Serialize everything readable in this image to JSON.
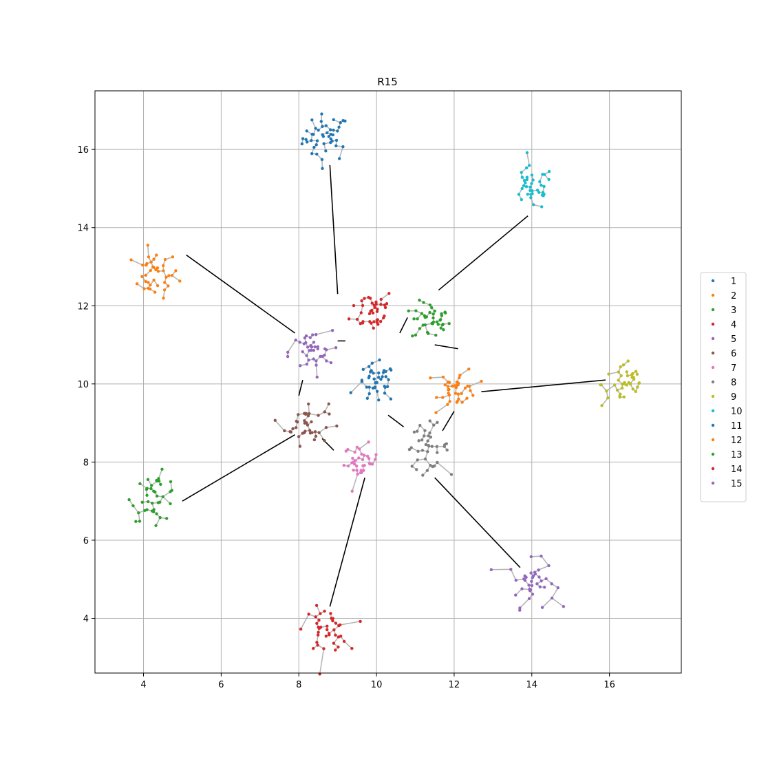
{
  "chart_data": {
    "type": "scatter",
    "title": "R15",
    "xlabel": "",
    "ylabel": "",
    "xlim": [
      2.75,
      17.85
    ],
    "ylim": [
      2.6,
      17.5
    ],
    "xticks": [
      4,
      6,
      8,
      10,
      12,
      14,
      16
    ],
    "yticks": [
      4,
      6,
      8,
      10,
      12,
      14,
      16
    ],
    "grid": true,
    "legend_position": "right",
    "mst_edge_color": "#aaaaaa",
    "bridge_edge_color": "#000000",
    "series": [
      {
        "name": "1",
        "color": "#1f77b4",
        "center": [
          8.7,
          16.3
        ],
        "spread": 0.3,
        "points": 45
      },
      {
        "name": "2",
        "color": "#ff7f0e",
        "center": [
          4.3,
          12.8
        ],
        "spread": 0.3,
        "points": 40
      },
      {
        "name": "3",
        "color": "#2ca02c",
        "center": [
          11.4,
          11.6
        ],
        "spread": 0.25,
        "points": 40
      },
      {
        "name": "4",
        "color": "#d62728",
        "center": [
          9.9,
          11.9
        ],
        "spread": 0.28,
        "points": 40
      },
      {
        "name": "5",
        "color": "#9467bd",
        "center": [
          14.0,
          4.9
        ],
        "spread": 0.3,
        "points": 40
      },
      {
        "name": "6",
        "color": "#8c564b",
        "center": [
          8.2,
          9.0
        ],
        "spread": 0.28,
        "points": 40
      },
      {
        "name": "7",
        "color": "#e377c2",
        "center": [
          9.6,
          8.0
        ],
        "spread": 0.22,
        "points": 35
      },
      {
        "name": "8",
        "color": "#7f7f7f",
        "center": [
          11.3,
          8.4
        ],
        "spread": 0.28,
        "points": 40
      },
      {
        "name": "9",
        "color": "#bcbd22",
        "center": [
          16.4,
          10.0
        ],
        "spread": 0.3,
        "points": 40
      },
      {
        "name": "10",
        "color": "#17becf",
        "center": [
          14.0,
          15.0
        ],
        "spread": 0.28,
        "points": 40
      },
      {
        "name": "11",
        "color": "#1f77b4",
        "center": [
          10.0,
          10.0
        ],
        "spread": 0.25,
        "points": 40
      },
      {
        "name": "12",
        "color": "#ff7f0e",
        "center": [
          12.1,
          9.9
        ],
        "spread": 0.25,
        "points": 40
      },
      {
        "name": "13",
        "color": "#2ca02c",
        "center": [
          4.3,
          7.1
        ],
        "spread": 0.3,
        "points": 40
      },
      {
        "name": "14",
        "color": "#d62728",
        "center": [
          8.7,
          3.7
        ],
        "spread": 0.28,
        "points": 40
      },
      {
        "name": "15",
        "color": "#9467bd",
        "center": [
          8.3,
          10.8
        ],
        "spread": 0.28,
        "points": 40
      }
    ],
    "bridges": [
      {
        "from": [
          8.8,
          15.6
        ],
        "to": [
          9.0,
          12.3
        ]
      },
      {
        "from": [
          5.1,
          13.3
        ],
        "to": [
          7.9,
          11.3
        ]
      },
      {
        "from": [
          11.6,
          12.4
        ],
        "to": [
          13.9,
          14.3
        ]
      },
      {
        "from": [
          10.6,
          11.3
        ],
        "to": [
          10.8,
          11.7
        ]
      },
      {
        "from": [
          9.0,
          11.1
        ],
        "to": [
          9.2,
          11.1
        ]
      },
      {
        "from": [
          11.5,
          11.0
        ],
        "to": [
          12.1,
          10.9
        ]
      },
      {
        "from": [
          12.7,
          9.8
        ],
        "to": [
          15.9,
          10.1
        ]
      },
      {
        "from": [
          10.3,
          9.2
        ],
        "to": [
          10.7,
          8.9
        ]
      },
      {
        "from": [
          11.7,
          8.8
        ],
        "to": [
          12.0,
          9.3
        ]
      },
      {
        "from": [
          8.0,
          9.7
        ],
        "to": [
          8.1,
          10.1
        ]
      },
      {
        "from": [
          8.6,
          8.6
        ],
        "to": [
          8.9,
          8.3
        ]
      },
      {
        "from": [
          7.9,
          8.7
        ],
        "to": [
          5.0,
          7.0
        ]
      },
      {
        "from": [
          9.7,
          7.6
        ],
        "to": [
          8.8,
          4.3
        ]
      },
      {
        "from": [
          11.5,
          7.6
        ],
        "to": [
          13.7,
          5.3
        ]
      }
    ]
  }
}
